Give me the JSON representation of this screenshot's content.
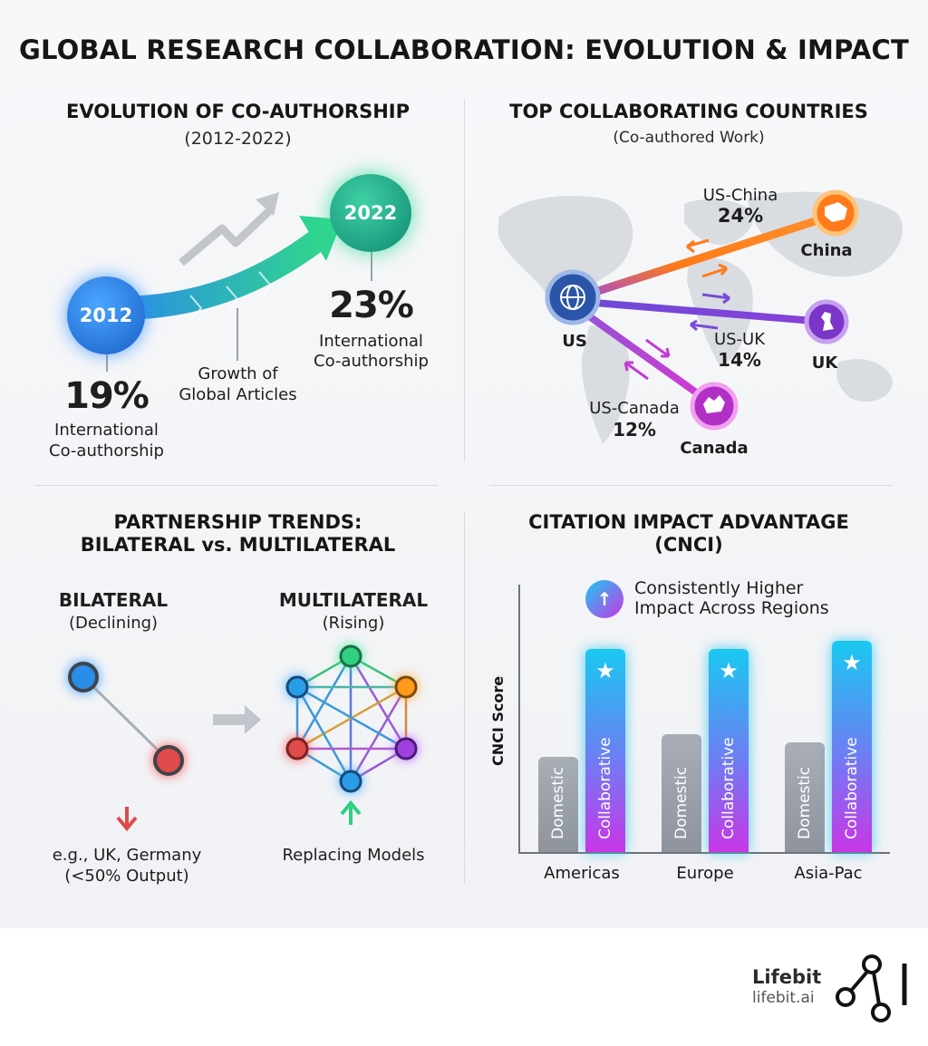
{
  "title": "GLOBAL RESEARCH COLLABORATION: EVOLUTION & IMPACT",
  "coauthorship": {
    "title": "EVOLUTION OF CO-AUTHORSHIP",
    "period": "(2012-2022)",
    "start_year": "2012",
    "end_year": "2022",
    "start_value": "19%",
    "start_label_1": "International",
    "start_label_2": "Co-authorship",
    "end_value": "23%",
    "end_label_1": "International",
    "end_label_2": "Co-authorship",
    "growth_label_1": "Growth of",
    "growth_label_2": "Global Articles",
    "colors": {
      "start": "#1f78e0",
      "end": "#18b88a"
    }
  },
  "countries": {
    "title": "TOP COLLABORATING COUNTRIES",
    "subtitle": "(Co-authored Work)",
    "hub": "US",
    "links": [
      {
        "pair": "US-China",
        "share": "24%",
        "country": "China",
        "color": "#ff7a1a"
      },
      {
        "pair": "US-UK",
        "share": "14%",
        "country": "UK",
        "color": "#8a3fd8"
      },
      {
        "pair": "US-Canada",
        "share": "12%",
        "country": "Canada",
        "color": "#c43ad0"
      }
    ]
  },
  "partnership": {
    "title_1": "PARTNERSHIP TRENDS:",
    "title_2": "BILATERAL vs. MULTILATERAL",
    "bilateral": {
      "label": "BILATERAL",
      "status": "(Declining)",
      "note_1": "e.g., UK, Germany",
      "note_2": "(<50% Output)"
    },
    "multilateral": {
      "label": "MULTILATERAL",
      "status": "(Rising)",
      "note": "Replacing Models"
    }
  },
  "citation": {
    "title_1": "CITATION IMPACT ADVANTAGE",
    "title_2": "(CNCI)",
    "callout_1": "Consistently Higher",
    "callout_2": "Impact Across Regions",
    "ylabel": "CNCI Score",
    "bar_labels": {
      "domestic": "Domestic",
      "collaborative": "Collaborative"
    },
    "colors": {
      "domestic": "#9aa0a8",
      "collaborative": "#1ec8f0"
    }
  },
  "chart_data": {
    "type": "bar",
    "categories": [
      "Americas",
      "Europe",
      "Asia-Pac"
    ],
    "series": [
      {
        "name": "Domestic",
        "values": [
          0.46,
          0.57,
          0.53
        ]
      },
      {
        "name": "Collaborative",
        "values": [
          0.98,
          0.98,
          1.02
        ]
      }
    ],
    "ylabel": "CNCI Score",
    "xlabel": ""
  },
  "brand": {
    "name": "Lifebit",
    "url": "lifebit.ai"
  }
}
